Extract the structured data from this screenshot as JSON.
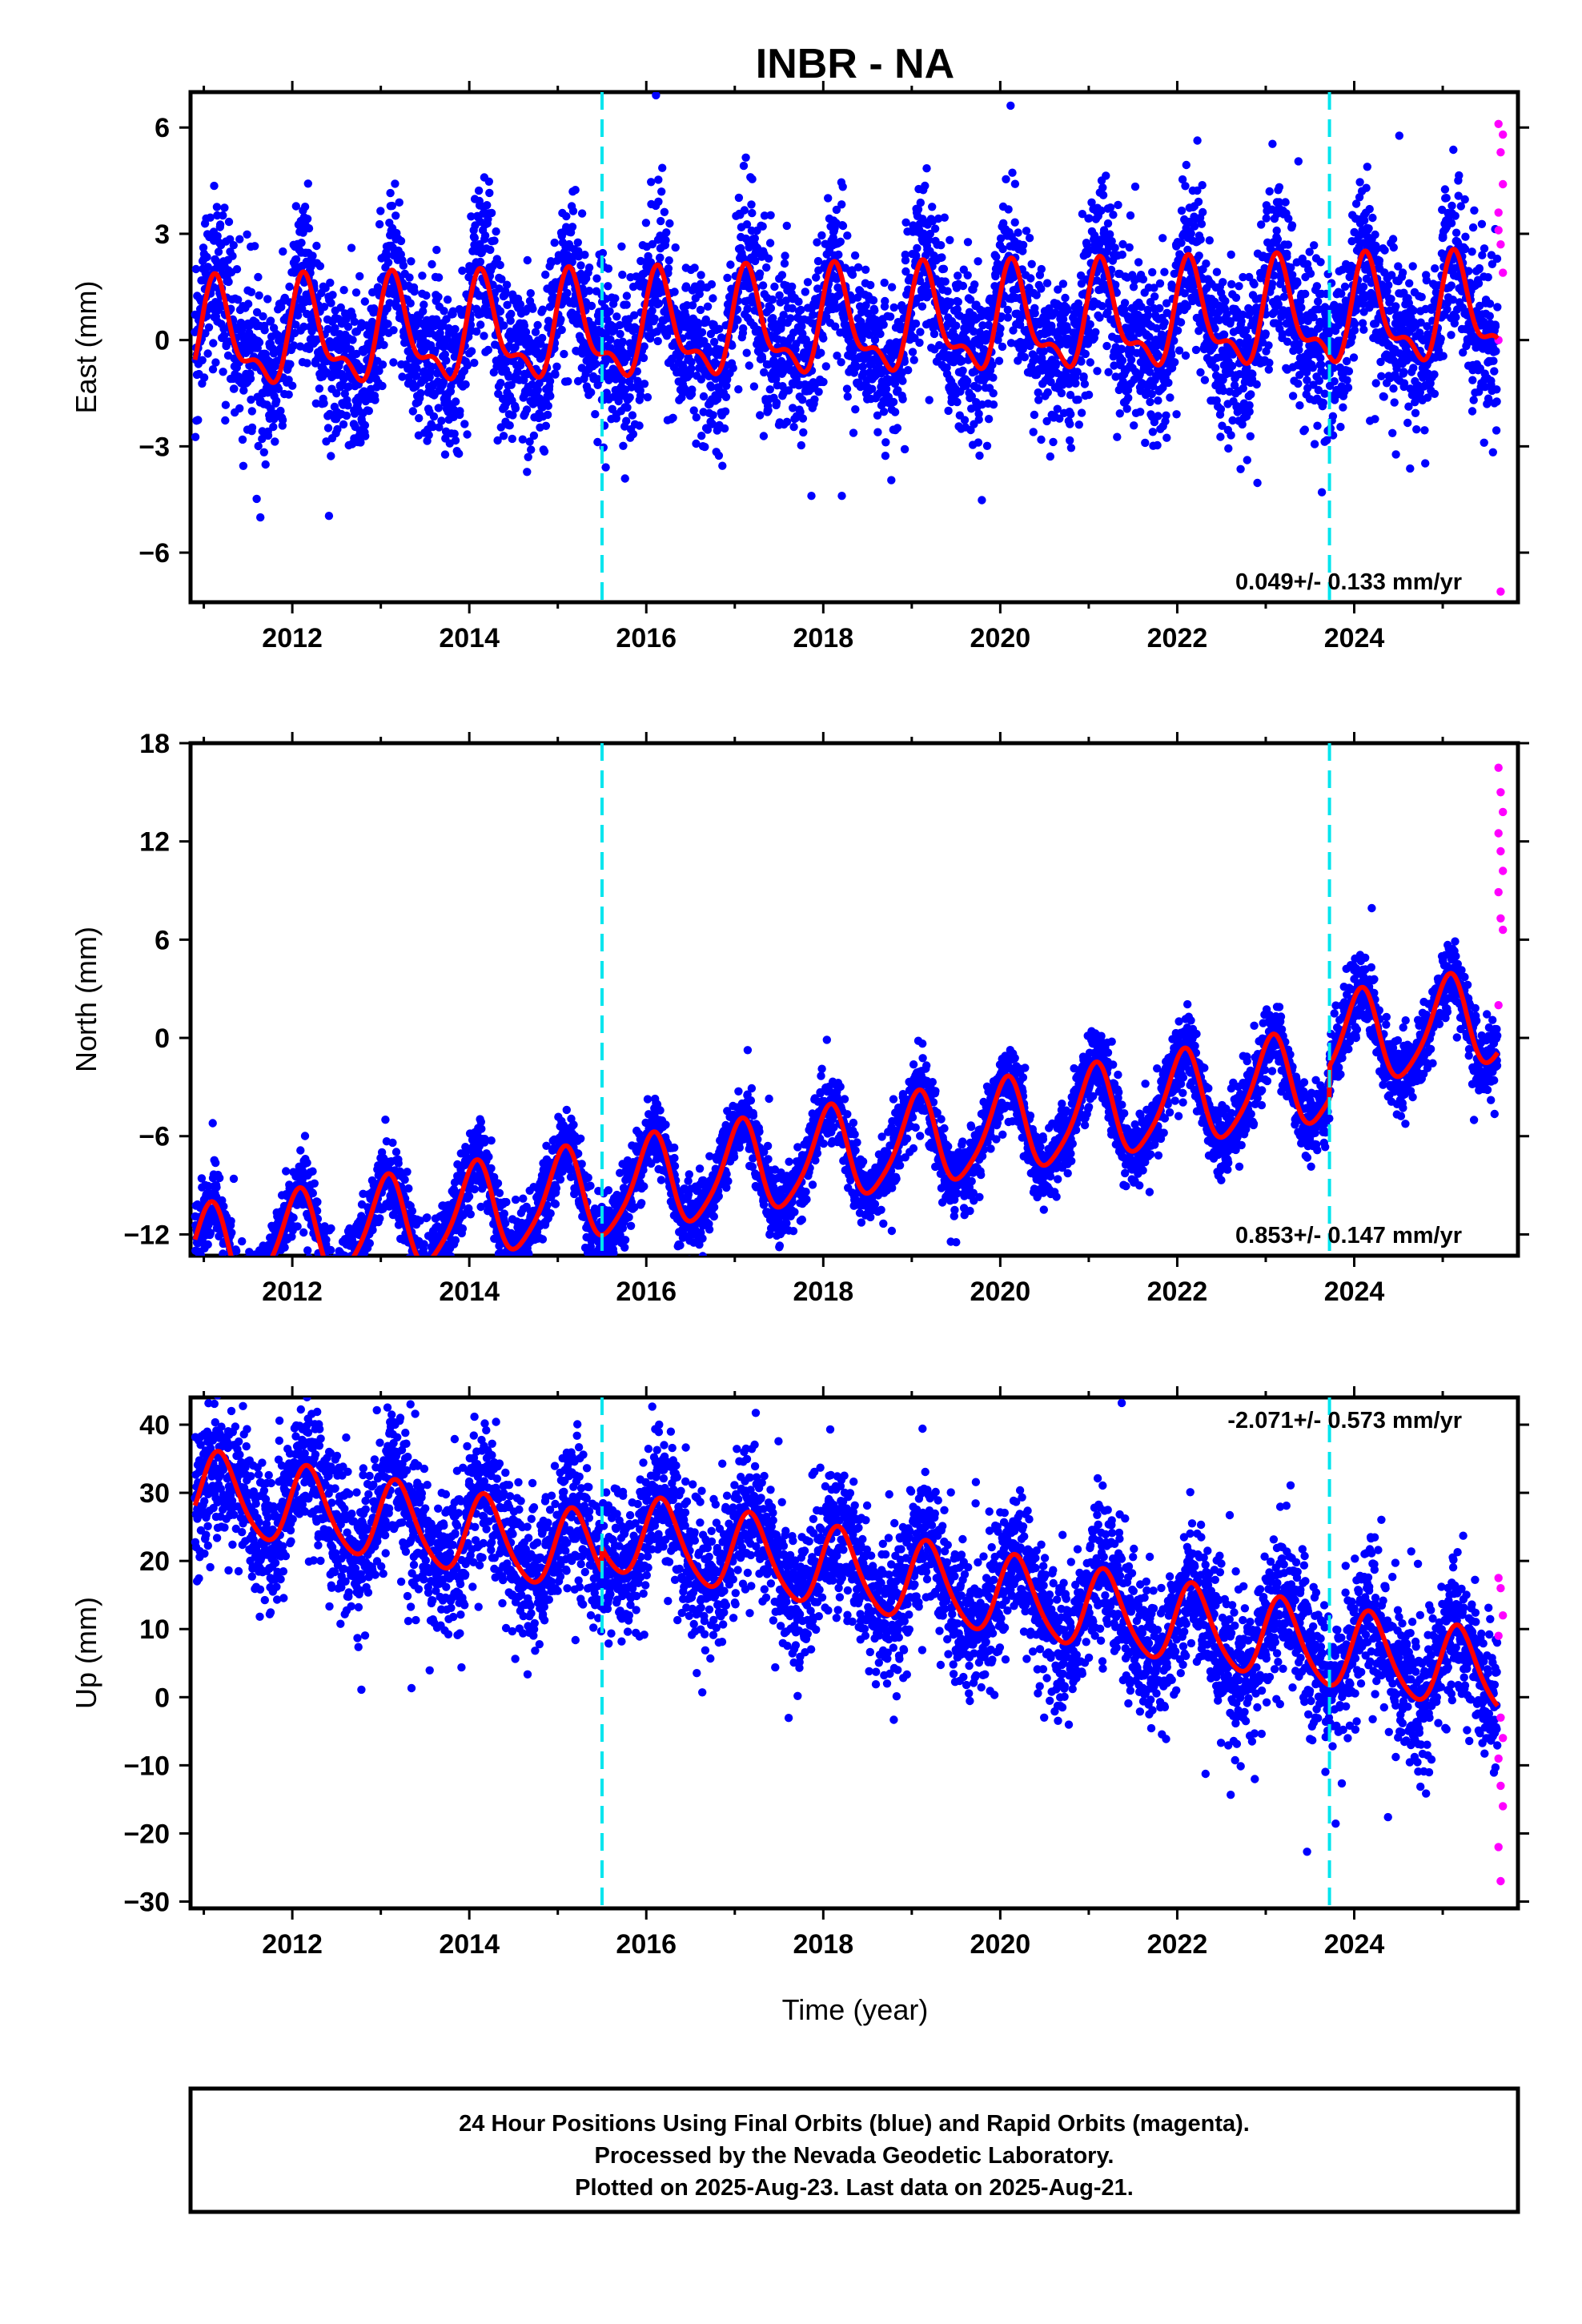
{
  "title": "INBR - NA",
  "colors": {
    "final_orbits": "#0000ff",
    "rapid_orbits": "#ff00ff",
    "model": "#ff0000",
    "event_line": "#00e5ee",
    "frame": "#000000"
  },
  "x_axis": {
    "label": "Time (year)",
    "range": [
      2010.85,
      2025.85
    ],
    "ticks": [
      2012,
      2014,
      2016,
      2018,
      2020,
      2022,
      2024
    ],
    "minor_step": 1
  },
  "event_lines": [
    2015.5,
    2023.72
  ],
  "chart_data": [
    {
      "type": "scatter",
      "name": "east",
      "ylabel": "East (mm)",
      "ylim": [
        -7.4,
        7.0
      ],
      "yticks": [
        "6",
        "3",
        "0",
        "−3",
        "−6"
      ],
      "ytick_values": [
        6,
        3,
        0,
        -3,
        -6
      ],
      "rate_text": "0.049+/- 0.133 mm/yr",
      "rate_position": "bottom-right",
      "data_range": [
        2010.9,
        2025.62
      ],
      "model": {
        "offset": 0.35,
        "trend": 0.049,
        "annual_amp": 1.3,
        "annual_phase": 0.6,
        "semiannual_amp": 0.6,
        "semiannual_phase": 0.2,
        "steps": []
      },
      "scatter_sigma": 1.15,
      "rapid_values": [
        6.1,
        5.3,
        4.4,
        3.6,
        2.7,
        1.9,
        0.0,
        -7.1,
        5.8,
        3.1
      ]
    },
    {
      "type": "scatter",
      "name": "north",
      "ylabel": "North (mm)",
      "ylim": [
        -13.3,
        18.0
      ],
      "yticks": [
        "18",
        "12",
        "6",
        "0",
        "−6",
        "−12"
      ],
      "ytick_values": [
        18,
        12,
        6,
        0,
        -6,
        -12
      ],
      "rate_text": "0.853+/- 0.147 mm/yr",
      "rate_position": "bottom-right",
      "data_range": [
        2010.9,
        2025.62
      ],
      "model": {
        "offset": -7.3,
        "trend": 0.853,
        "annual_amp": 2.8,
        "annual_phase": 1.2,
        "semiannual_amp": 0.5,
        "semiannual_phase": 0.0,
        "steps": [
          [
            2023.72,
            2.0
          ]
        ]
      },
      "scatter_sigma": 1.1,
      "rapid_values": [
        16.5,
        15.0,
        13.8,
        12.5,
        11.4,
        10.2,
        8.9,
        7.3,
        6.6,
        2.0
      ]
    },
    {
      "type": "scatter",
      "name": "up",
      "ylabel": "Up (mm)",
      "ylim": [
        -31.0,
        44.0
      ],
      "yticks": [
        "40",
        "30",
        "20",
        "10",
        "0",
        "−10",
        "−20",
        "−30"
      ],
      "ytick_values": [
        40,
        30,
        20,
        10,
        0,
        -10,
        -20,
        -30
      ],
      "rate_text": "-2.071+/- 0.573 mm/yr",
      "rate_position": "top-right",
      "data_range": [
        2010.9,
        2025.62
      ],
      "model": {
        "offset": 15.5,
        "trend": -2.071,
        "annual_amp": 5.8,
        "annual_phase": 0.4,
        "semiannual_amp": 0.8,
        "semiannual_phase": 0.0,
        "steps": [
          [
            2015.5,
            3.5
          ]
        ]
      },
      "scatter_sigma": 5.2,
      "rapid_values": [
        17.5,
        16.0,
        12.0,
        9.0,
        -3.0,
        -6.0,
        -9.0,
        -13.0,
        -16.0,
        -22.0,
        -27.0
      ]
    }
  ],
  "info_box": {
    "line1": "24 Hour Positions Using Final Orbits (blue) and Rapid Orbits (magenta).",
    "line2": "Processed by the Nevada Geodetic Laboratory.",
    "line3": "Plotted on 2025-Aug-23. Last data on 2025-Aug-21."
  }
}
